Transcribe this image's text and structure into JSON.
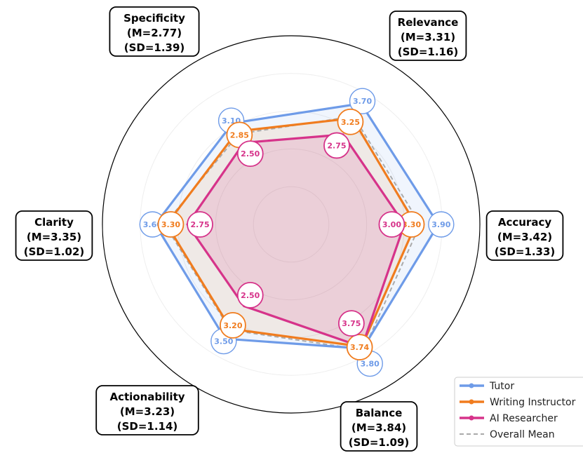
{
  "chart_data": {
    "type": "radar",
    "title": "",
    "axes": [
      {
        "name": "Relevance",
        "mean": "(M=3.31)",
        "sd": "(SD=1.16)"
      },
      {
        "name": "Accuracy",
        "mean": "(M=3.42)",
        "sd": "(SD=1.33)"
      },
      {
        "name": "Balance",
        "mean": "(M=3.84)",
        "sd": "(SD=1.09)"
      },
      {
        "name": "Actionability",
        "mean": "(M=3.23)",
        "sd": "(SD=1.14)"
      },
      {
        "name": "Clarity",
        "mean": "(M=3.35)",
        "sd": "(SD=1.02)"
      },
      {
        "name": "Specificity",
        "mean": "(M=2.77)",
        "sd": "(SD=1.39)"
      }
    ],
    "rlim": [
      0,
      5
    ],
    "grid": true,
    "legend_position": "bottom-right",
    "series": [
      {
        "name": "Tutor",
        "color": "#6e9be8",
        "values": [
          3.7,
          3.9,
          3.8,
          3.5,
          3.6,
          3.1
        ],
        "labels": [
          "3.70",
          "3.90",
          "3.80",
          "3.50",
          "3.60",
          "3.10"
        ]
      },
      {
        "name": "Writing Instructor",
        "color": "#f07c1e",
        "values": [
          3.25,
          3.3,
          3.74,
          3.2,
          3.3,
          2.85
        ],
        "labels": [
          "3.25",
          "3.30",
          "3.74",
          "3.20",
          "3.30",
          "2.85"
        ]
      },
      {
        "name": "AI Researcher",
        "color": "#d6338a",
        "values": [
          2.75,
          3.0,
          3.75,
          2.5,
          2.75,
          2.5
        ],
        "labels": [
          "2.75",
          "3.00",
          "3.75",
          "2.50",
          "2.75",
          "2.50"
        ]
      }
    ],
    "overall_mean": {
      "name": "Overall Mean",
      "color": "#aaaaaa",
      "values": [
        3.31,
        3.42,
        3.84,
        3.23,
        3.35,
        2.77
      ]
    }
  }
}
